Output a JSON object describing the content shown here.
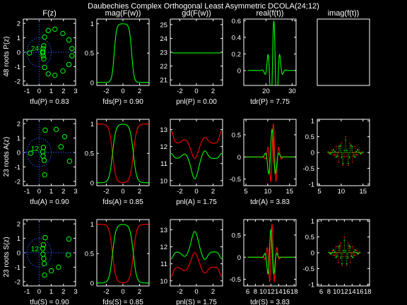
{
  "figure": {
    "title": "Daubechies Complex Orthogonal Least Asymmetric DCOLA(24;12)",
    "background": "#000000",
    "axes_color": "#ffffff",
    "row_labels": [
      "48 roots P(z)",
      "23 roots A(z)",
      "23 roots S(z)"
    ]
  },
  "chart_data": [
    {
      "type": "scatter",
      "row": 0,
      "col": 0,
      "title": "F(z)",
      "xlabel": "tfu(P) = 0.83",
      "xlim": [
        -1.3,
        3
      ],
      "ylim": [
        -2.3,
        2.3
      ],
      "xticks": [
        -1,
        0,
        1,
        2,
        3
      ],
      "yticks": [
        -2,
        -1,
        0,
        1,
        2
      ],
      "annotation": "24",
      "color": "#00ff00",
      "points": [
        [
          -0.8,
          -0.05
        ],
        [
          0.3,
          0.05
        ],
        [
          0.3,
          -0.05
        ],
        [
          0.33,
          0.25
        ],
        [
          0.33,
          -0.25
        ],
        [
          0.38,
          0.45
        ],
        [
          0.38,
          -0.45
        ],
        [
          0.45,
          1.05
        ],
        [
          0.45,
          -1.05
        ],
        [
          0.75,
          1.5
        ],
        [
          0.75,
          -1.5
        ],
        [
          1.3,
          1.6
        ],
        [
          1.3,
          -1.6
        ],
        [
          1.95,
          1.3
        ],
        [
          1.95,
          -1.3
        ],
        [
          2.45,
          0.85
        ],
        [
          2.45,
          -0.85
        ],
        [
          2.7,
          0.25
        ],
        [
          2.7,
          -0.25
        ]
      ]
    },
    {
      "type": "line",
      "row": 0,
      "col": 1,
      "title": "mag(F(w))",
      "xlabel": "fds(P) = 0.90",
      "xlim": [
        -3.14,
        3.14
      ],
      "ylim": [
        -0.05,
        1.08
      ],
      "xticks": [
        -2,
        0,
        2
      ],
      "yticks": [
        0,
        0.5,
        1
      ],
      "series": [
        {
          "kind": "band",
          "color": "#00ff00",
          "edge": 1.05,
          "width": 0.14,
          "invert": false
        }
      ]
    },
    {
      "type": "line",
      "row": 0,
      "col": 2,
      "title": "gd(F(w))",
      "xlabel": "pnl(P) = 0.00",
      "xlim": [
        -3.14,
        3.14
      ],
      "ylim": [
        20.6,
        25.4
      ],
      "xticks": [
        -2,
        0,
        2
      ],
      "yticks": [
        21,
        22,
        23,
        24,
        25
      ],
      "series": [
        {
          "kind": "const",
          "color": "#00ff00",
          "y": 22.95
        }
      ]
    },
    {
      "type": "line",
      "row": 0,
      "col": 3,
      "title": "real(f(t))",
      "xlabel": "tdr(P) = 7.75",
      "xlim": [
        11.5,
        31.5
      ],
      "ylim": [
        -0.18,
        0.62
      ],
      "xticks": [
        20,
        30
      ],
      "yticks": [
        0,
        0.2,
        0.4,
        0.6
      ],
      "series": [
        {
          "kind": "wavelet",
          "color": "#00ff00",
          "t0": 23,
          "amp": 0.6,
          "w": 1.5,
          "freq": 0.86,
          "x0": 13,
          "x1": 31
        }
      ]
    },
    {
      "type": "line",
      "row": 0,
      "col": 4,
      "title": "imag(f(t))",
      "xlabel": "",
      "xlim": [
        0,
        1
      ],
      "ylim": [
        0,
        1
      ],
      "xticks": [],
      "yticks": [],
      "series": [],
      "empty": true
    },
    {
      "type": "scatter",
      "row": 1,
      "col": 0,
      "title": "",
      "xlabel": "tfu(A) = 0.90",
      "xlim": [
        -1.3,
        3
      ],
      "ylim": [
        -2.3,
        2.3
      ],
      "xticks": [
        -1,
        0,
        1,
        2,
        3
      ],
      "yticks": [
        -2,
        -1,
        0,
        1,
        2
      ],
      "annotation": "12",
      "color": "#00ff00",
      "points": [
        [
          -0.7,
          -0.05
        ],
        [
          0.3,
          0.05
        ],
        [
          0.32,
          -0.25
        ],
        [
          0.35,
          0.35
        ],
        [
          0.42,
          -0.55
        ],
        [
          0.5,
          1.55
        ],
        [
          0.45,
          -1.55
        ],
        [
          1.4,
          1.6
        ],
        [
          2.1,
          1.1
        ],
        [
          2.5,
          -0.6
        ],
        [
          1.8,
          0.4
        ]
      ]
    },
    {
      "type": "line",
      "row": 1,
      "col": 1,
      "title": "",
      "xlabel": "fds(A) = 0.85",
      "xlim": [
        -3.14,
        3.14
      ],
      "ylim": [
        -0.05,
        1.08
      ],
      "xticks": [
        -2,
        0,
        2
      ],
      "yticks": [
        0,
        0.5,
        1
      ],
      "series": [
        {
          "kind": "band",
          "color": "#ff0000",
          "edge": 1.25,
          "width": 0.2,
          "invert": true
        },
        {
          "kind": "band",
          "color": "#00ff00",
          "edge": 1.25,
          "width": 0.2,
          "invert": false
        }
      ]
    },
    {
      "type": "line",
      "row": 1,
      "col": 2,
      "title": "",
      "xlabel": "pnl(A) = 1.75",
      "xlim": [
        -3.14,
        3.14
      ],
      "ylim": [
        9.7,
        13.6
      ],
      "xticks": [
        -2,
        0,
        2
      ],
      "yticks": [
        10,
        11,
        12,
        13
      ],
      "series": [
        {
          "kind": "gdwave",
          "color": "#ff0000",
          "base": 12.2,
          "edge": 12.95,
          "dip": -0.9,
          "bump": 0.35
        },
        {
          "kind": "gdwave",
          "color": "#00ff00",
          "base": 11.3,
          "edge": 11.6,
          "dip": -1.2,
          "bump": 0.45
        }
      ]
    },
    {
      "type": "line",
      "row": 1,
      "col": 3,
      "title": "",
      "xlabel": "tdr(A) = 3.83",
      "xlim": [
        4.5,
        16.5
      ],
      "ylim": [
        -0.65,
        0.85
      ],
      "xticks": [
        5,
        10,
        15
      ],
      "yticks": [
        -0.5,
        0,
        0.5
      ],
      "series": [
        {
          "kind": "wavelet",
          "color": "#ff0000",
          "t0": 11.3,
          "amp": 0.75,
          "w": 0.8,
          "freq": 1.55,
          "x0": 5,
          "x1": 16
        },
        {
          "kind": "wavelet",
          "color": "#00ff00",
          "t0": 11.0,
          "amp": 0.62,
          "w": 0.8,
          "freq": 1.2,
          "x0": 5,
          "x1": 16
        }
      ]
    },
    {
      "type": "line",
      "row": 1,
      "col": 4,
      "title": "",
      "xlabel": "",
      "xlim": [
        4.5,
        16.5
      ],
      "ylim": [
        -1.05,
        1.05
      ],
      "xticks": [
        5,
        10,
        15
      ],
      "yticks": [
        -1,
        -0.5,
        0,
        0.5,
        1
      ],
      "series": [
        {
          "kind": "dots",
          "color": "#ff0000",
          "t0": 11,
          "amp": 0.5,
          "w": 1.6,
          "freq": 1.9,
          "x0": 7,
          "x1": 15
        },
        {
          "kind": "dots",
          "color": "#00ff00",
          "t0": 11,
          "amp": 0.4,
          "w": 1.6,
          "freq": 1.45,
          "x0": 7,
          "x1": 15
        }
      ]
    },
    {
      "type": "scatter",
      "row": 2,
      "col": 0,
      "title": "",
      "xlabel": "tfu(S) = 0.90",
      "xlim": [
        -1.3,
        3
      ],
      "ylim": [
        -2.3,
        2.3
      ],
      "xticks": [
        -1,
        0,
        1,
        2,
        3
      ],
      "yticks": [
        -2,
        -1,
        0,
        1,
        2
      ],
      "annotation": "12",
      "color": "#00ff00",
      "points": [
        [
          0.3,
          0.3
        ],
        [
          0.32,
          -0.1
        ],
        [
          0.35,
          0.55
        ],
        [
          0.38,
          -0.4
        ],
        [
          0.42,
          -0.75
        ],
        [
          0.5,
          1.05
        ],
        [
          0.45,
          -1.55
        ],
        [
          1.0,
          -1.25
        ],
        [
          1.6,
          -1.0
        ],
        [
          2.4,
          -0.15
        ],
        [
          2.45,
          0.95
        ]
      ]
    },
    {
      "type": "line",
      "row": 2,
      "col": 1,
      "title": "",
      "xlabel": "fds(S) = 0.85",
      "xlim": [
        -3.14,
        3.14
      ],
      "ylim": [
        -0.05,
        1.08
      ],
      "xticks": [
        -2,
        0,
        2
      ],
      "yticks": [
        0,
        0.5,
        1
      ],
      "series": [
        {
          "kind": "band",
          "color": "#ff0000",
          "edge": 1.25,
          "width": 0.2,
          "invert": true
        },
        {
          "kind": "band",
          "color": "#00ff00",
          "edge": 1.25,
          "width": 0.2,
          "invert": false
        }
      ]
    },
    {
      "type": "line",
      "row": 2,
      "col": 2,
      "title": "",
      "xlabel": "pnl(S) = 1.75",
      "xlim": [
        -3.14,
        3.14
      ],
      "ylim": [
        9.7,
        13.6
      ],
      "xticks": [
        -2,
        0,
        2
      ],
      "yticks": [
        10,
        11,
        12,
        13
      ],
      "series": [
        {
          "kind": "gdwave",
          "color": "#00ff00",
          "base": 11.7,
          "edge": 11.3,
          "dip": 1.2,
          "bump": -0.45
        },
        {
          "kind": "gdwave",
          "color": "#ff0000",
          "base": 10.8,
          "edge": 10.25,
          "dip": 0.85,
          "bump": -0.35
        }
      ]
    },
    {
      "type": "line",
      "row": 2,
      "col": 3,
      "title": "",
      "xlabel": "tdr(S) = 3.83",
      "xlim": [
        5,
        18.5
      ],
      "ylim": [
        -0.65,
        0.85
      ],
      "xticks": [
        6,
        8,
        10,
        12,
        14,
        16,
        18
      ],
      "yticks": [
        -0.5,
        0,
        0.5
      ],
      "series": [
        {
          "kind": "wavelet",
          "color": "#ff0000",
          "t0": 12.3,
          "amp": 0.75,
          "w": 0.8,
          "freq": 1.55,
          "x0": 6,
          "x1": 18
        },
        {
          "kind": "wavelet",
          "color": "#00ff00",
          "t0": 12.0,
          "amp": 0.62,
          "w": 0.8,
          "freq": 1.2,
          "x0": 6,
          "x1": 18
        }
      ]
    },
    {
      "type": "line",
      "row": 2,
      "col": 4,
      "title": "",
      "xlabel": "",
      "xlim": [
        5,
        18.5
      ],
      "ylim": [
        -1.05,
        1.05
      ],
      "xticks": [
        6,
        8,
        10,
        12,
        14,
        16,
        18
      ],
      "yticks": [
        -1,
        -0.5,
        0,
        0.5,
        1
      ],
      "series": [
        {
          "kind": "dots",
          "color": "#ff0000",
          "t0": 12,
          "amp": 0.5,
          "w": 1.6,
          "freq": 1.9,
          "x0": 8,
          "x1": 16
        },
        {
          "kind": "dots",
          "color": "#00ff00",
          "t0": 12,
          "amp": 0.4,
          "w": 1.6,
          "freq": 1.45,
          "x0": 8,
          "x1": 16
        }
      ]
    }
  ]
}
